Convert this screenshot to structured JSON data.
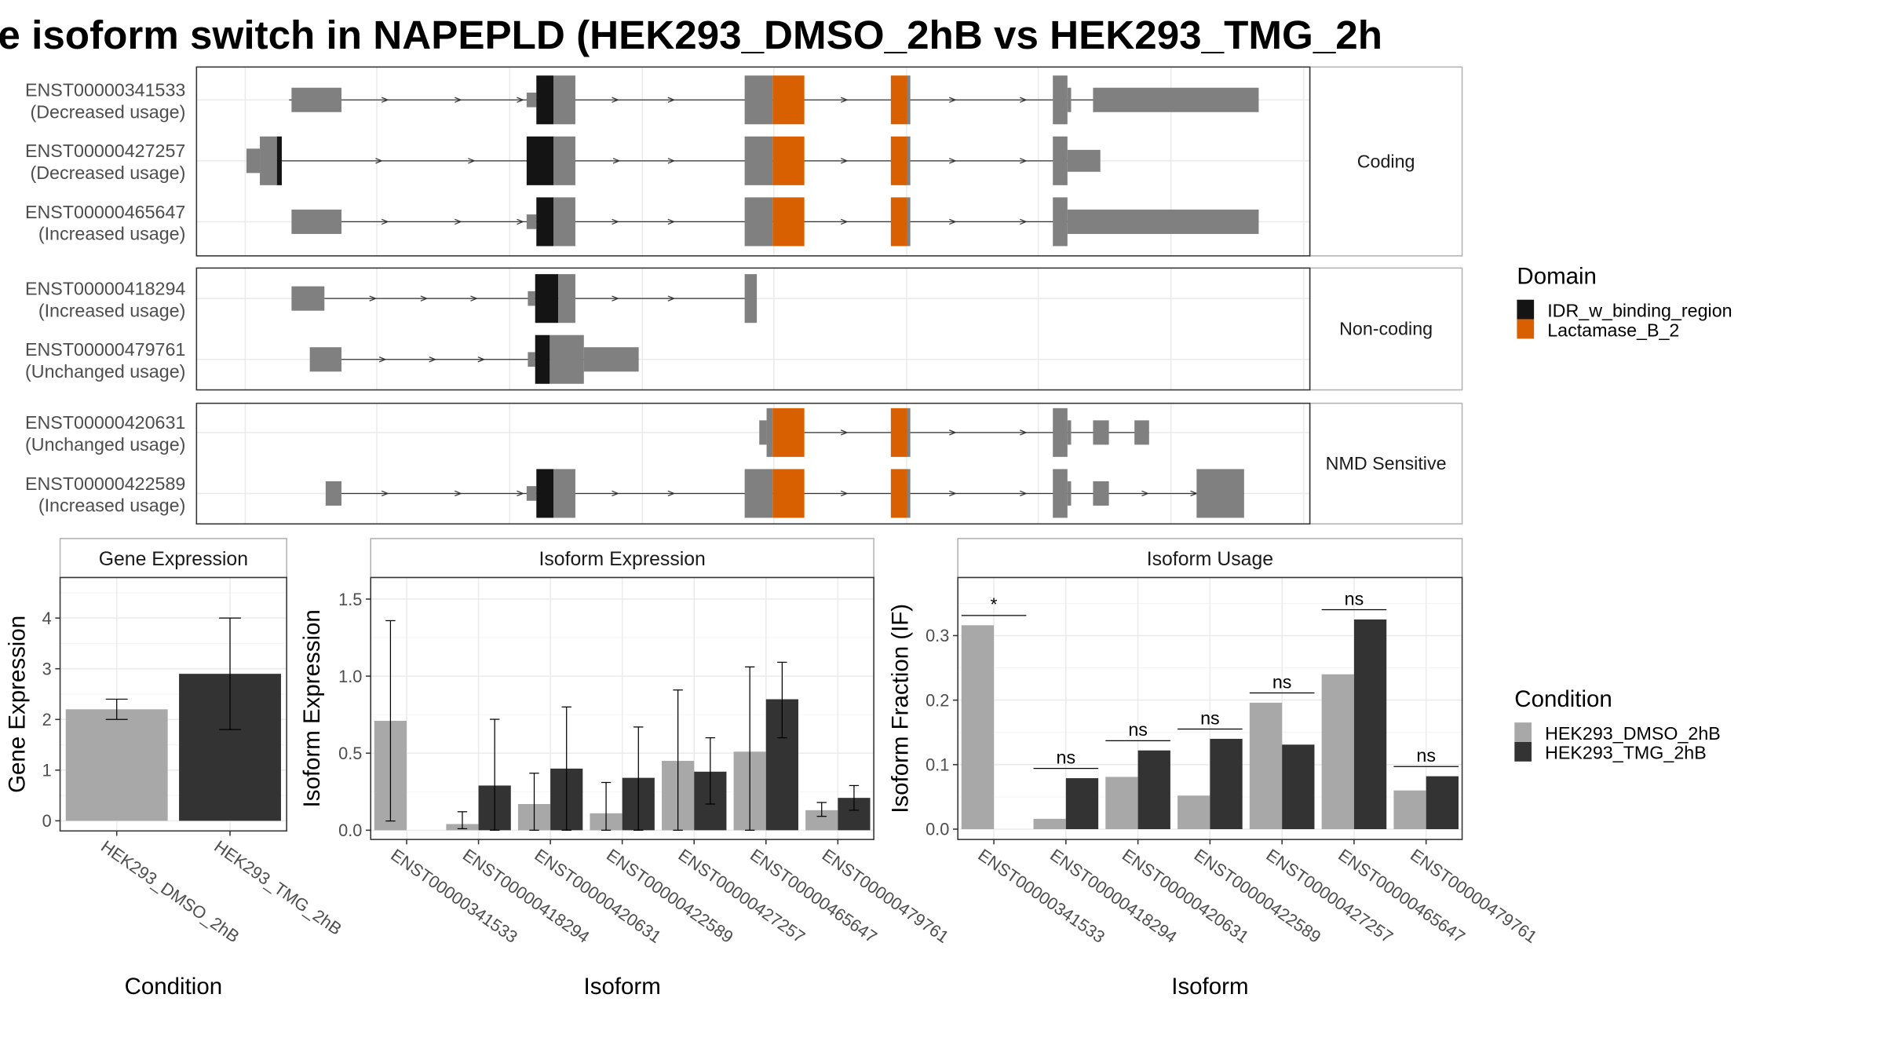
{
  "title": "e isoform switch in NAPEPLD (HEK293_DMSO_2hB vs HEK293_TMG_2h",
  "colors": {
    "utr": "#808080",
    "idr": "#141414",
    "lactamase": "#d96000",
    "cond_dmso": "#a8a8a8",
    "cond_tmg": "#333333",
    "grid": "#ebebeb",
    "strip_border": "#b3b3b3"
  },
  "structure": {
    "groups": [
      {
        "label": "Coding",
        "isoforms": [
          {
            "id": "ENST00000341533",
            "usage": "(Decreased usage)"
          },
          {
            "id": "ENST00000427257",
            "usage": "(Decreased usage)"
          },
          {
            "id": "ENST00000465647",
            "usage": "(Increased usage)"
          }
        ]
      },
      {
        "label": "Non-coding",
        "isoforms": [
          {
            "id": "ENST00000418294",
            "usage": "(Increased usage)"
          },
          {
            "id": "ENST00000479761",
            "usage": "(Unchanged usage)"
          }
        ]
      },
      {
        "label": "NMD Sensitive",
        "isoforms": [
          {
            "id": "ENST00000420631",
            "usage": "(Unchanged usage)"
          },
          {
            "id": "ENST00000422589",
            "usage": "(Increased usage)"
          }
        ]
      }
    ]
  },
  "legend_domain": {
    "title": "Domain",
    "items": [
      {
        "label": "IDR_w_binding_region",
        "color": "#141414"
      },
      {
        "label": "Lactamase_B_2",
        "color": "#d96000"
      }
    ]
  },
  "legend_condition": {
    "title": "Condition",
    "items": [
      {
        "label": "HEK293_DMSO_2hB",
        "color": "#a8a8a8"
      },
      {
        "label": "HEK293_TMG_2hB",
        "color": "#333333"
      }
    ]
  },
  "chart_data": [
    {
      "type": "bar",
      "title": "Gene Expression",
      "xlabel": "Condition",
      "ylabel": "Gene Expression",
      "categories": [
        "HEK293_DMSO_2hB",
        "HEK293_TMG_2hB"
      ],
      "values": [
        2.2,
        2.9
      ],
      "error_low": [
        2.0,
        1.8
      ],
      "error_high": [
        2.4,
        4.0
      ],
      "ylim": [
        -0.2,
        4.8
      ],
      "yticks": [
        "0",
        "1",
        "2",
        "3",
        "4"
      ]
    },
    {
      "type": "bar",
      "title": "Isoform Expression",
      "xlabel": "Isoform",
      "ylabel": "Isoform Expression",
      "categories": [
        "ENST00000341533",
        "ENST00000418294",
        "ENST00000420631",
        "ENST00000422589",
        "ENST00000427257",
        "ENST00000465647",
        "ENST00000479761"
      ],
      "series": [
        {
          "name": "HEK293_DMSO_2hB",
          "values": [
            0.71,
            0.04,
            0.17,
            0.11,
            0.45,
            0.51,
            0.13
          ],
          "error_low": [
            0.06,
            0.01,
            0.0,
            0.0,
            0.0,
            0.0,
            0.09
          ],
          "error_high": [
            1.36,
            0.12,
            0.37,
            0.31,
            0.91,
            1.06,
            0.18
          ]
        },
        {
          "name": "HEK293_TMG_2hB",
          "values": [
            0.0,
            0.29,
            0.4,
            0.34,
            0.38,
            0.85,
            0.21
          ],
          "error_low": [
            null,
            0.0,
            0.0,
            0.0,
            0.17,
            0.6,
            0.13
          ],
          "error_high": [
            null,
            0.72,
            0.8,
            0.67,
            0.6,
            1.09,
            0.29
          ]
        }
      ],
      "ylim": [
        -0.06,
        1.64
      ],
      "yticks": [
        "0.0",
        "0.5",
        "1.0",
        "1.5"
      ]
    },
    {
      "type": "bar",
      "title": "Isoform Usage",
      "xlabel": "Isoform",
      "ylabel": "Isoform Fraction (IF)",
      "categories": [
        "ENST00000341533",
        "ENST00000418294",
        "ENST00000420631",
        "ENST00000422589",
        "ENST00000427257",
        "ENST00000465647",
        "ENST00000479761"
      ],
      "series": [
        {
          "name": "HEK293_DMSO_2hB",
          "values": [
            0.316,
            0.016,
            0.081,
            0.052,
            0.196,
            0.24,
            0.06
          ]
        },
        {
          "name": "HEK293_TMG_2hB",
          "values": [
            0.0,
            0.079,
            0.122,
            0.14,
            0.131,
            0.325,
            0.082
          ]
        }
      ],
      "significance": [
        "*",
        "ns",
        "ns",
        "ns",
        "ns",
        "ns",
        "ns"
      ],
      "ylim": [
        -0.016,
        0.39
      ],
      "yticks": [
        "0.0",
        "0.1",
        "0.2",
        "0.3"
      ]
    }
  ]
}
